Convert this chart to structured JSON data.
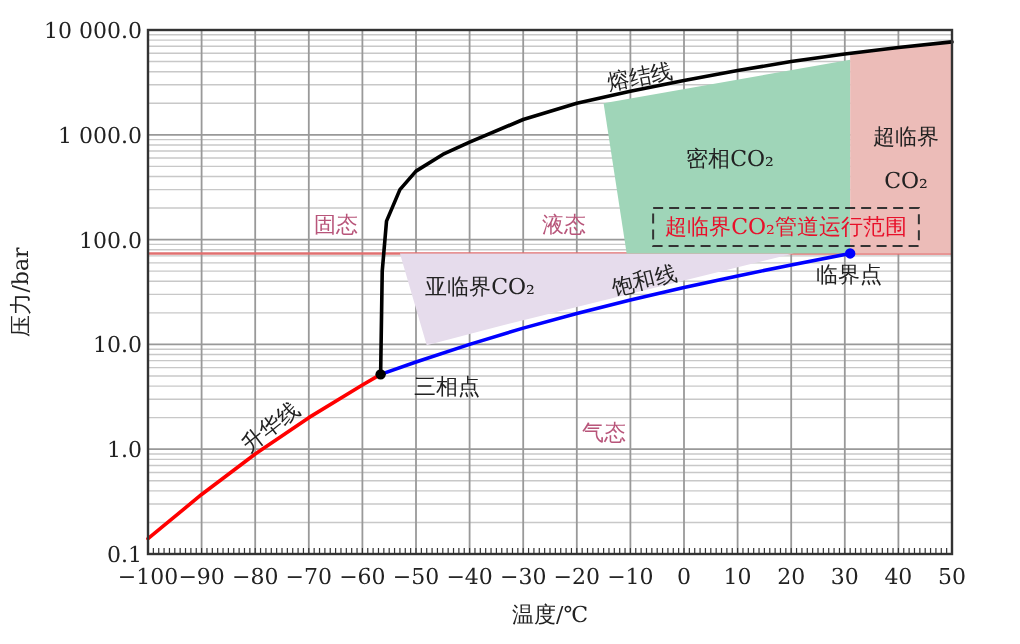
{
  "chart_data": {
    "type": "line",
    "xlabel": "温度/℃",
    "ylabel": "压力/bar",
    "log": "y",
    "grid": true,
    "xlim": [
      -100,
      50
    ],
    "ylim": [
      0.1,
      10000
    ],
    "xticks": [
      {
        "value": -100,
        "label": "−100"
      },
      {
        "value": -90,
        "label": "−90"
      },
      {
        "value": -80,
        "label": "−80"
      },
      {
        "value": -70,
        "label": "−70"
      },
      {
        "value": -60,
        "label": "−60"
      },
      {
        "value": -50,
        "label": "−50"
      },
      {
        "value": -40,
        "label": "−40"
      },
      {
        "value": -30,
        "label": "−30"
      },
      {
        "value": -20,
        "label": "−20"
      },
      {
        "value": -10,
        "label": "−10"
      },
      0,
      10,
      20,
      30,
      40,
      50
    ],
    "yticks": [
      {
        "value": 0.1,
        "label": "0.1"
      },
      {
        "value": 1,
        "label": "1.0"
      },
      {
        "value": 10,
        "label": "10.0"
      },
      {
        "value": 100,
        "label": "100.0"
      },
      {
        "value": 1000,
        "label": "1 000.0"
      },
      {
        "value": 10000,
        "label": "10 000.0"
      }
    ],
    "ref_lines": [
      {
        "axis": "y",
        "value": 73.8,
        "color": "#e07070"
      }
    ],
    "series": [
      {
        "type": "area",
        "color": "#e6dcec",
        "x": [
          -53,
          -48,
          -34.3,
          20.5,
          -53
        ],
        "values": [
          73.8,
          9.8,
          15,
          73.8,
          73.8
        ]
      },
      {
        "type": "area",
        "color": "#9fd5b8",
        "x": [
          -15,
          31,
          31,
          -10.7,
          -15
        ],
        "values": [
          2000,
          5200,
          73.8,
          73.8,
          2000
        ]
      },
      {
        "type": "area",
        "color": "#ecbcb8",
        "x": [
          31,
          50,
          50,
          31,
          31
        ],
        "values": [
          6000,
          7700,
          73.8,
          73.8,
          6000
        ]
      },
      {
        "type": "line",
        "color": "#ff0000",
        "x": [
          -100,
          -90,
          -80,
          -70,
          -60,
          -56.6
        ],
        "values": [
          0.14,
          0.37,
          0.9,
          2.0,
          4.1,
          5.18
        ]
      },
      {
        "type": "line",
        "color": "#0000ff",
        "x": [
          -56.6,
          -50,
          -40,
          -30,
          -20,
          -10,
          0,
          10,
          20,
          31
        ],
        "values": [
          5.18,
          6.8,
          10,
          14.3,
          19.7,
          26.5,
          34.9,
          45,
          57.3,
          73.8
        ]
      },
      {
        "type": "line",
        "color": "#000000",
        "x": [
          -56.6,
          -56.3,
          -55.5,
          -53,
          -50,
          -45,
          -40,
          -30,
          -20,
          -10,
          0,
          10,
          20,
          30,
          40,
          50
        ],
        "values": [
          5.18,
          50,
          150,
          300,
          450,
          650,
          850,
          1400,
          2000,
          2600,
          3300,
          4100,
          5000,
          5900,
          6800,
          7700
        ]
      },
      {
        "type": "scatter",
        "colors": [
          "#000000",
          "#0000ff"
        ],
        "x": [
          -56.6,
          31
        ],
        "values": [
          5.18,
          73.8
        ]
      }
    ],
    "annotations": [
      "熔结线",
      "饱和线",
      "升华线",
      "三相点",
      "临界点",
      "固态",
      "液态",
      "气态",
      "亚临界CO₂",
      "密相CO₂",
      "超临界",
      "CO₂",
      "超临界CO₂管道运行范围"
    ]
  }
}
